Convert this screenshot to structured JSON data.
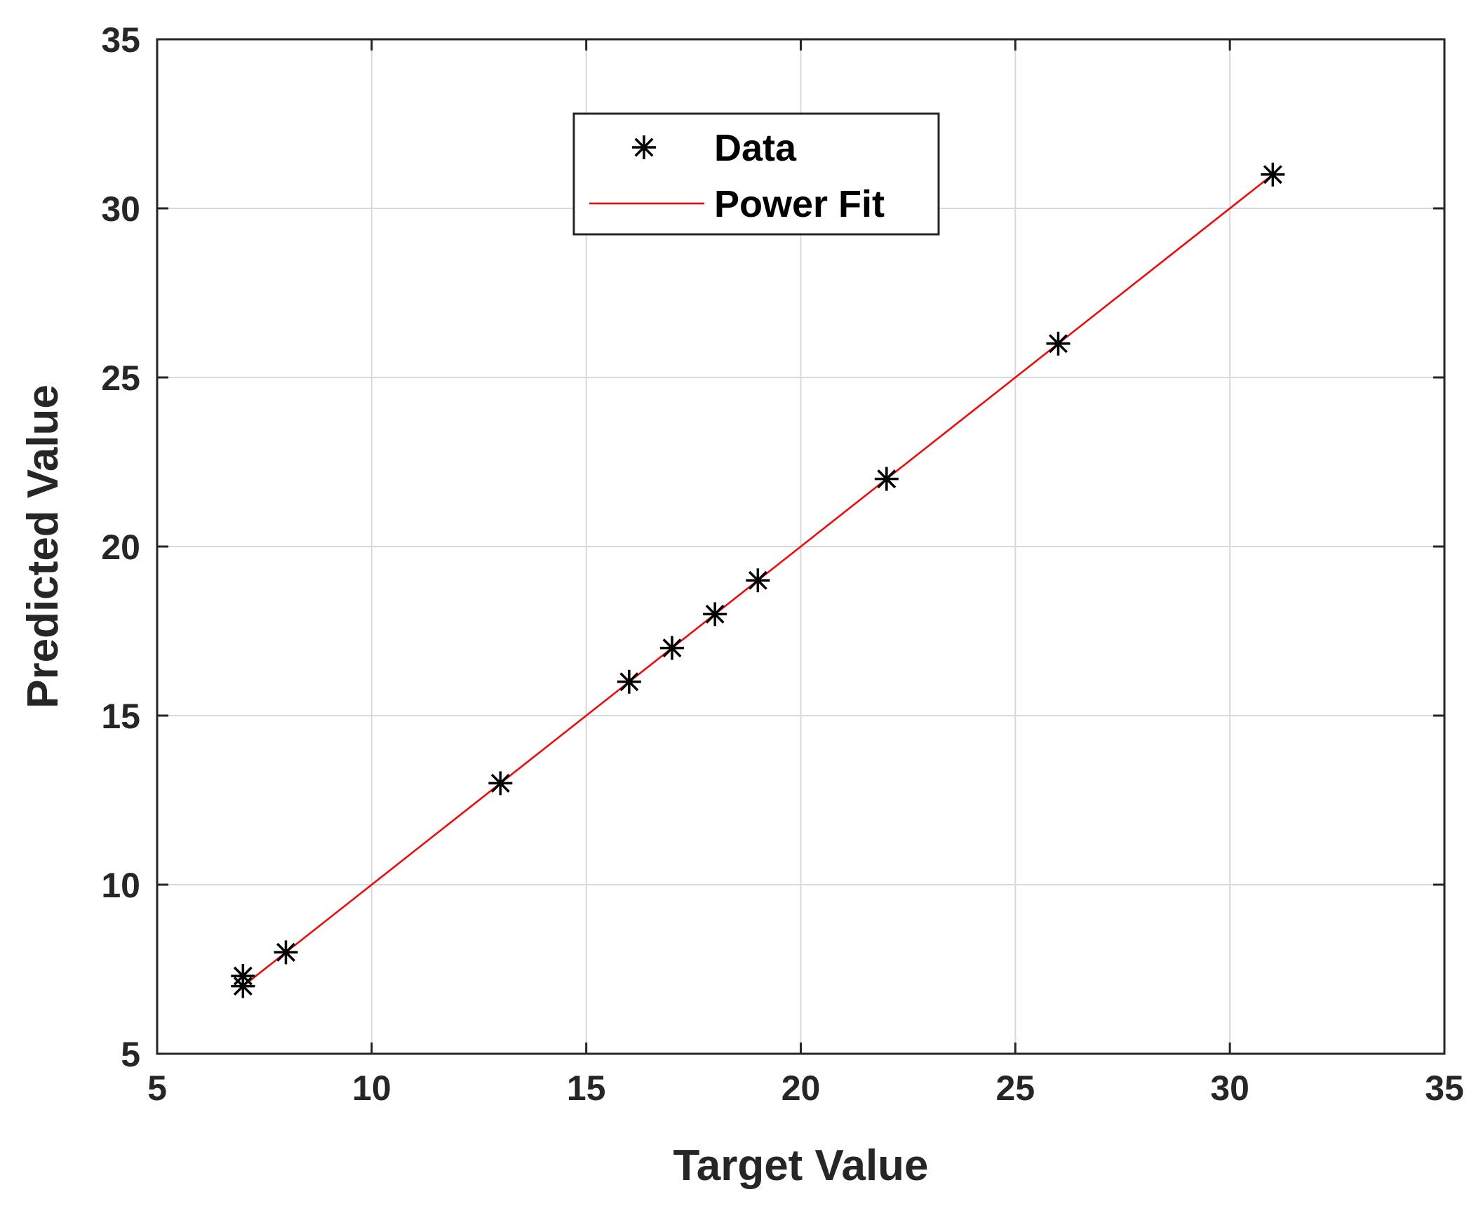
{
  "chart_data": {
    "type": "scatter",
    "xlabel": "Target Value",
    "ylabel": "Predicted Value",
    "xlim": [
      5,
      35
    ],
    "ylim": [
      5,
      35
    ],
    "xticks": [
      5,
      10,
      15,
      20,
      25,
      30,
      35
    ],
    "yticks": [
      5,
      10,
      15,
      20,
      25,
      30,
      35
    ],
    "grid": true,
    "legend_position": "top-center",
    "series": [
      {
        "name": "Data",
        "kind": "scatter",
        "marker": "asterisk",
        "color": "#000000",
        "x": [
          7,
          7,
          8,
          13,
          16,
          17,
          18,
          19,
          22,
          26,
          31
        ],
        "y": [
          7.3,
          7.0,
          8.0,
          13.0,
          16.0,
          17.0,
          18.0,
          19.0,
          22.0,
          26.0,
          31.0
        ]
      },
      {
        "name": "Power Fit",
        "kind": "line",
        "color": "#ff0000",
        "x": [
          7,
          31
        ],
        "y": [
          7.0,
          31.0
        ]
      }
    ]
  }
}
